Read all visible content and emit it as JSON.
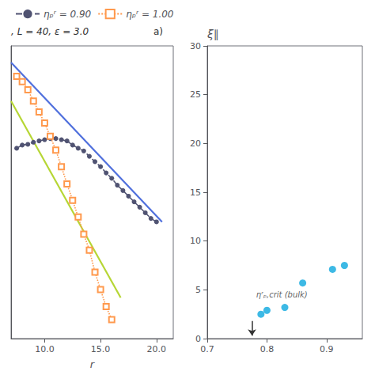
{
  "chart_data": [
    {
      "type": "line",
      "log": "y",
      "xlabel": "r",
      "annotations": [
        ", L = 40, ε = 3.0",
        "a)"
      ],
      "xlim": [
        7.0,
        21.5
      ],
      "ylim": [
        1e-05,
        2.0
      ],
      "xticks": [
        {
          "value": 10.0,
          "label": "10.0"
        },
        {
          "value": 15.0,
          "label": "15.0"
        },
        {
          "value": 20.0,
          "label": "20.0"
        }
      ],
      "tick_labels": "x",
      "grid": false,
      "legend": "top",
      "series": [
        {
          "x": [
            7.0,
            20.5
          ],
          "values": [
            1.0,
            0.0013
          ],
          "marker": "none",
          "line_style": "solid"
        },
        {
          "x": [
            7.0,
            16.8
          ],
          "values": [
            0.2,
            5.5e-05
          ],
          "marker": "none",
          "line_style": "solid"
        },
        {
          "name": "ηₚʳ = 0.90",
          "marker": "circle",
          "line_style": "dashed",
          "x": [
            7.5,
            8.0,
            8.5,
            9.0,
            9.5,
            10.0,
            10.5,
            11.0,
            11.5,
            12.0,
            12.5,
            13.0,
            13.5,
            14.0,
            14.5,
            15.0,
            15.5,
            16.0,
            16.5,
            17.0,
            17.5,
            18.0,
            18.5,
            19.0,
            19.5,
            20.0
          ],
          "values": [
            0.028,
            0.032,
            0.033,
            0.036,
            0.038,
            0.04,
            0.042,
            0.042,
            0.04,
            0.038,
            0.032,
            0.028,
            0.025,
            0.02,
            0.016,
            0.013,
            0.01,
            0.008,
            0.006,
            0.0048,
            0.0038,
            0.003,
            0.0024,
            0.0019,
            0.0015,
            0.0013
          ]
        },
        {
          "name": "ηₚʳ = 1.00",
          "marker": "hollow_square",
          "line_style": "dotted",
          "x": [
            7.5,
            8.0,
            8.5,
            9.0,
            9.5,
            10.0,
            10.5,
            11.0,
            11.5,
            12.0,
            12.5,
            13.0,
            13.5,
            14.0,
            14.5,
            15.0,
            15.5,
            16.0
          ],
          "values": [
            0.56,
            0.45,
            0.32,
            0.2,
            0.127,
            0.08,
            0.046,
            0.026,
            0.013,
            0.0063,
            0.0032,
            0.0016,
            0.00078,
            0.0004,
            0.00016,
            7.7e-05,
            3.8e-05,
            2.2e-05
          ]
        }
      ]
    },
    {
      "type": "scatter",
      "ylabel": "ξ∥",
      "xlim": [
        0.7,
        0.96
      ],
      "ylim": [
        0,
        30
      ],
      "xticks": [
        0.7,
        0.8,
        0.9
      ],
      "yticks": [
        0,
        5,
        10,
        15,
        20,
        25,
        30
      ],
      "grid": false,
      "x": [
        0.79,
        0.8,
        0.83,
        0.86,
        0.91,
        0.93
      ],
      "values": [
        2.5,
        2.9,
        3.2,
        5.7,
        7.1,
        7.5
      ],
      "annotations": [
        {
          "text": "ηʳₚ,crit (bulk)",
          "x": 0.782,
          "y": 4.5,
          "arrow_x": 0.775,
          "arrow_y": [
            1.8,
            0.3
          ]
        }
      ]
    }
  ]
}
